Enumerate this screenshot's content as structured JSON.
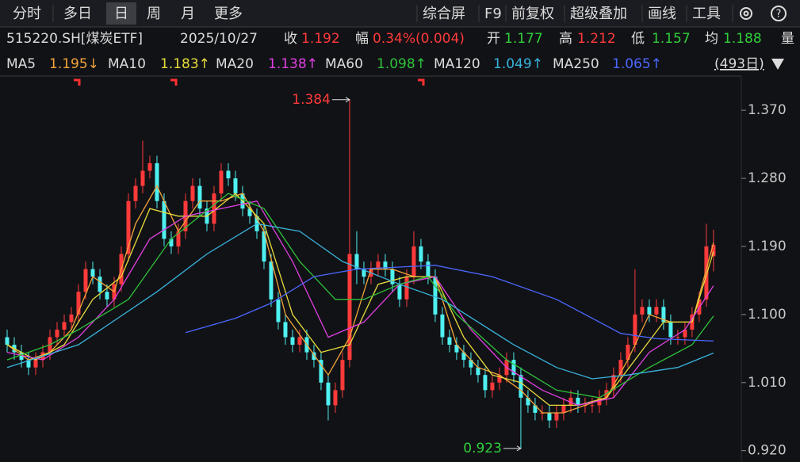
{
  "toolbar": {
    "tabs": [
      "分时",
      "多日",
      "日",
      "周",
      "月",
      "更多"
    ],
    "tools": [
      "综合屏",
      "F9",
      "前复权",
      "超级叠加",
      "画线",
      "工具"
    ]
  },
  "quote": {
    "symbol": "515220.SH[煤炭ETF]",
    "date": "2025/10/27",
    "items": [
      {
        "label": "收",
        "value": "1.192"
      },
      {
        "label": "幅",
        "value": "0.34%(0.004)"
      },
      {
        "label": "开",
        "value": "1.177"
      },
      {
        "label": "高",
        "value": "1.212"
      },
      {
        "label": "低",
        "value": "1.157"
      },
      {
        "label": "均",
        "value": "1.188"
      },
      {
        "label": "量"
      }
    ]
  },
  "range_label": "(493日)",
  "chart_data": {
    "type": "candlestick",
    "up_color": "#ff3a3a",
    "down_color": "#4ef0f0",
    "xlim": [
      -1,
      102.9
    ],
    "ylim": [
      0.905,
      1.411
    ],
    "yticks": [
      {
        "value": 1.37,
        "label": "1.370"
      },
      {
        "value": 1.28,
        "label": "1.280"
      },
      {
        "value": 1.19,
        "label": "1.190"
      },
      {
        "value": 1.1,
        "label": "1.100"
      },
      {
        "value": 1.01,
        "label": "1.010"
      },
      {
        "value": 0.92,
        "label": "0.920"
      }
    ],
    "open": [
      1.07,
      1.06,
      1.05,
      1.04,
      1.03,
      1.04,
      1.05,
      1.07,
      1.08,
      1.09,
      1.1,
      1.13,
      1.16,
      1.15,
      1.13,
      1.12,
      1.14,
      1.18,
      1.25,
      1.27,
      1.29,
      1.3,
      1.25,
      1.2,
      1.19,
      1.21,
      1.25,
      1.27,
      1.24,
      1.22,
      1.26,
      1.29,
      1.28,
      1.26,
      1.24,
      1.23,
      1.21,
      1.17,
      1.12,
      1.09,
      1.07,
      1.06,
      1.07,
      1.05,
      1.04,
      1.01,
      0.98,
      1.0,
      1.04,
      1.18,
      1.16,
      1.15,
      1.16,
      1.17,
      1.16,
      1.14,
      1.12,
      1.15,
      1.19,
      1.17,
      1.15,
      1.1,
      1.07,
      1.06,
      1.05,
      1.04,
      1.03,
      1.02,
      1.0,
      1.01,
      1.02,
      1.04,
      1.02,
      0.99,
      0.98,
      0.97,
      0.97,
      0.96,
      0.97,
      0.98,
      0.99,
      0.98,
      0.98,
      0.98,
      0.99,
      1.0,
      1.02,
      1.04,
      1.06,
      1.1,
      1.11,
      1.1,
      1.11,
      1.09,
      1.07,
      1.07,
      1.08,
      1.1,
      1.12,
      1.177
    ],
    "high": [
      1.08,
      1.07,
      1.06,
      1.05,
      1.05,
      1.06,
      1.08,
      1.09,
      1.1,
      1.11,
      1.14,
      1.17,
      1.17,
      1.16,
      1.14,
      1.15,
      1.19,
      1.26,
      1.28,
      1.33,
      1.31,
      1.31,
      1.26,
      1.21,
      1.22,
      1.26,
      1.28,
      1.28,
      1.25,
      1.27,
      1.3,
      1.3,
      1.29,
      1.27,
      1.25,
      1.24,
      1.22,
      1.18,
      1.13,
      1.1,
      1.08,
      1.08,
      1.08,
      1.06,
      1.05,
      1.02,
      1.01,
      1.05,
      1.384,
      1.21,
      1.17,
      1.17,
      1.18,
      1.18,
      1.17,
      1.15,
      1.16,
      1.21,
      1.2,
      1.18,
      1.16,
      1.11,
      1.08,
      1.07,
      1.06,
      1.05,
      1.04,
      1.03,
      1.02,
      1.03,
      1.05,
      1.05,
      1.03,
      1.0,
      0.99,
      0.98,
      0.98,
      0.98,
      0.99,
      1.0,
      1.0,
      0.99,
      0.99,
      1.0,
      1.01,
      1.03,
      1.05,
      1.07,
      1.16,
      1.12,
      1.12,
      1.12,
      1.12,
      1.1,
      1.08,
      1.09,
      1.11,
      1.13,
      1.22,
      1.212
    ],
    "low": [
      1.05,
      1.04,
      1.03,
      1.02,
      1.02,
      1.03,
      1.04,
      1.06,
      1.07,
      1.08,
      1.09,
      1.12,
      1.14,
      1.12,
      1.11,
      1.11,
      1.13,
      1.17,
      1.24,
      1.26,
      1.28,
      1.24,
      1.19,
      1.18,
      1.18,
      1.2,
      1.24,
      1.23,
      1.21,
      1.21,
      1.25,
      1.27,
      1.25,
      1.23,
      1.22,
      1.2,
      1.16,
      1.11,
      1.08,
      1.06,
      1.05,
      1.05,
      1.04,
      1.03,
      1.0,
      0.96,
      0.97,
      0.99,
      1.03,
      1.14,
      1.14,
      1.14,
      1.15,
      1.15,
      1.13,
      1.11,
      1.11,
      1.14,
      1.16,
      1.14,
      1.09,
      1.06,
      1.05,
      1.04,
      1.03,
      1.02,
      1.01,
      0.99,
      0.99,
      1.0,
      1.01,
      1.01,
      0.923,
      0.97,
      0.96,
      0.96,
      0.95,
      0.95,
      0.96,
      0.97,
      0.97,
      0.97,
      0.97,
      0.97,
      0.98,
      0.99,
      1.01,
      1.03,
      1.05,
      1.09,
      1.09,
      1.09,
      1.08,
      1.06,
      1.06,
      1.06,
      1.07,
      1.09,
      1.11,
      1.157
    ],
    "close": [
      1.06,
      1.05,
      1.04,
      1.03,
      1.04,
      1.05,
      1.07,
      1.08,
      1.09,
      1.1,
      1.13,
      1.16,
      1.15,
      1.13,
      1.12,
      1.14,
      1.18,
      1.25,
      1.27,
      1.29,
      1.3,
      1.25,
      1.2,
      1.19,
      1.21,
      1.25,
      1.27,
      1.24,
      1.22,
      1.26,
      1.29,
      1.28,
      1.26,
      1.24,
      1.23,
      1.21,
      1.17,
      1.12,
      1.09,
      1.07,
      1.06,
      1.07,
      1.05,
      1.04,
      1.01,
      0.98,
      1.0,
      1.04,
      1.18,
      1.16,
      1.15,
      1.16,
      1.17,
      1.16,
      1.14,
      1.12,
      1.15,
      1.19,
      1.17,
      1.15,
      1.1,
      1.07,
      1.06,
      1.05,
      1.04,
      1.03,
      1.02,
      1.0,
      1.01,
      1.02,
      1.04,
      1.02,
      0.99,
      0.98,
      0.97,
      0.97,
      0.96,
      0.97,
      0.98,
      0.99,
      0.98,
      0.98,
      0.98,
      0.99,
      1.0,
      1.02,
      1.04,
      1.06,
      1.1,
      1.11,
      1.1,
      1.11,
      1.09,
      1.07,
      1.07,
      1.08,
      1.1,
      1.12,
      1.19,
      1.192
    ],
    "series": [
      {
        "name": "MA5",
        "color": "#f2a43a",
        "latest": "1.195↓",
        "x": [
          0,
          3,
          6,
          9,
          12,
          15,
          18,
          21,
          24,
          27,
          30,
          33,
          36,
          39,
          42,
          45,
          48,
          51,
          54,
          57,
          60,
          63,
          66,
          69,
          72,
          75,
          78,
          81,
          84,
          87,
          90,
          93,
          96,
          99
        ],
        "values": [
          1.06,
          1.04,
          1.05,
          1.08,
          1.15,
          1.13,
          1.22,
          1.27,
          1.21,
          1.25,
          1.25,
          1.26,
          1.21,
          1.1,
          1.06,
          1.02,
          1.07,
          1.16,
          1.16,
          1.15,
          1.15,
          1.06,
          1.03,
          1.02,
          1.0,
          0.97,
          0.97,
          0.98,
          0.99,
          1.04,
          1.1,
          1.09,
          1.09,
          1.195
        ]
      },
      {
        "name": "MA10",
        "color": "#e8dc3c",
        "latest": "1.183↑",
        "x": [
          0,
          4,
          8,
          12,
          16,
          20,
          24,
          28,
          32,
          36,
          40,
          44,
          48,
          52,
          56,
          60,
          64,
          68,
          72,
          76,
          80,
          84,
          88,
          92,
          96,
          99
        ],
        "values": [
          1.06,
          1.04,
          1.06,
          1.12,
          1.15,
          1.24,
          1.23,
          1.23,
          1.26,
          1.22,
          1.1,
          1.05,
          1.06,
          1.14,
          1.15,
          1.15,
          1.07,
          1.02,
          1.01,
          0.98,
          0.98,
          0.99,
          1.04,
          1.09,
          1.09,
          1.183
        ]
      },
      {
        "name": "MA20",
        "color": "#e040e0",
        "latest": "1.138↑",
        "x": [
          0,
          5,
          10,
          15,
          20,
          25,
          30,
          35,
          40,
          45,
          50,
          55,
          60,
          65,
          70,
          75,
          80,
          85,
          90,
          95,
          99
        ],
        "values": [
          1.05,
          1.04,
          1.07,
          1.12,
          1.2,
          1.23,
          1.24,
          1.25,
          1.17,
          1.07,
          1.09,
          1.14,
          1.15,
          1.08,
          1.03,
          1.0,
          0.98,
          0.99,
          1.05,
          1.08,
          1.138
        ]
      },
      {
        "name": "MA60",
        "color": "#2fc23a",
        "latest": "1.098↑",
        "x": [
          0,
          6,
          10,
          17,
          23,
          31,
          36,
          41,
          46,
          50,
          55,
          59,
          63,
          70,
          77,
          83,
          90,
          96,
          99
        ],
        "values": [
          1.04,
          1.06,
          1.08,
          1.12,
          1.2,
          1.26,
          1.24,
          1.17,
          1.12,
          1.12,
          1.14,
          1.15,
          1.1,
          1.04,
          1.0,
          0.99,
          1.03,
          1.06,
          1.098
        ]
      },
      {
        "name": "MA120",
        "color": "#38b4dc",
        "latest": "1.049↑",
        "x": [
          0,
          10,
          21,
          28,
          35,
          41,
          47,
          55,
          61,
          71,
          77,
          82,
          87,
          94,
          99
        ],
        "values": [
          1.03,
          1.06,
          1.13,
          1.18,
          1.22,
          1.21,
          1.17,
          1.14,
          1.12,
          1.06,
          1.03,
          1.015,
          1.02,
          1.03,
          1.049
        ]
      },
      {
        "name": "MA250",
        "color": "#4a68ff",
        "latest": "1.065↑",
        "x": [
          25,
          32,
          37,
          43,
          49,
          60,
          68,
          77,
          86,
          91,
          99
        ],
        "values": [
          1.076,
          1.095,
          1.115,
          1.15,
          1.16,
          1.165,
          1.15,
          1.12,
          1.075,
          1.068,
          1.065
        ]
      }
    ]
  }
}
